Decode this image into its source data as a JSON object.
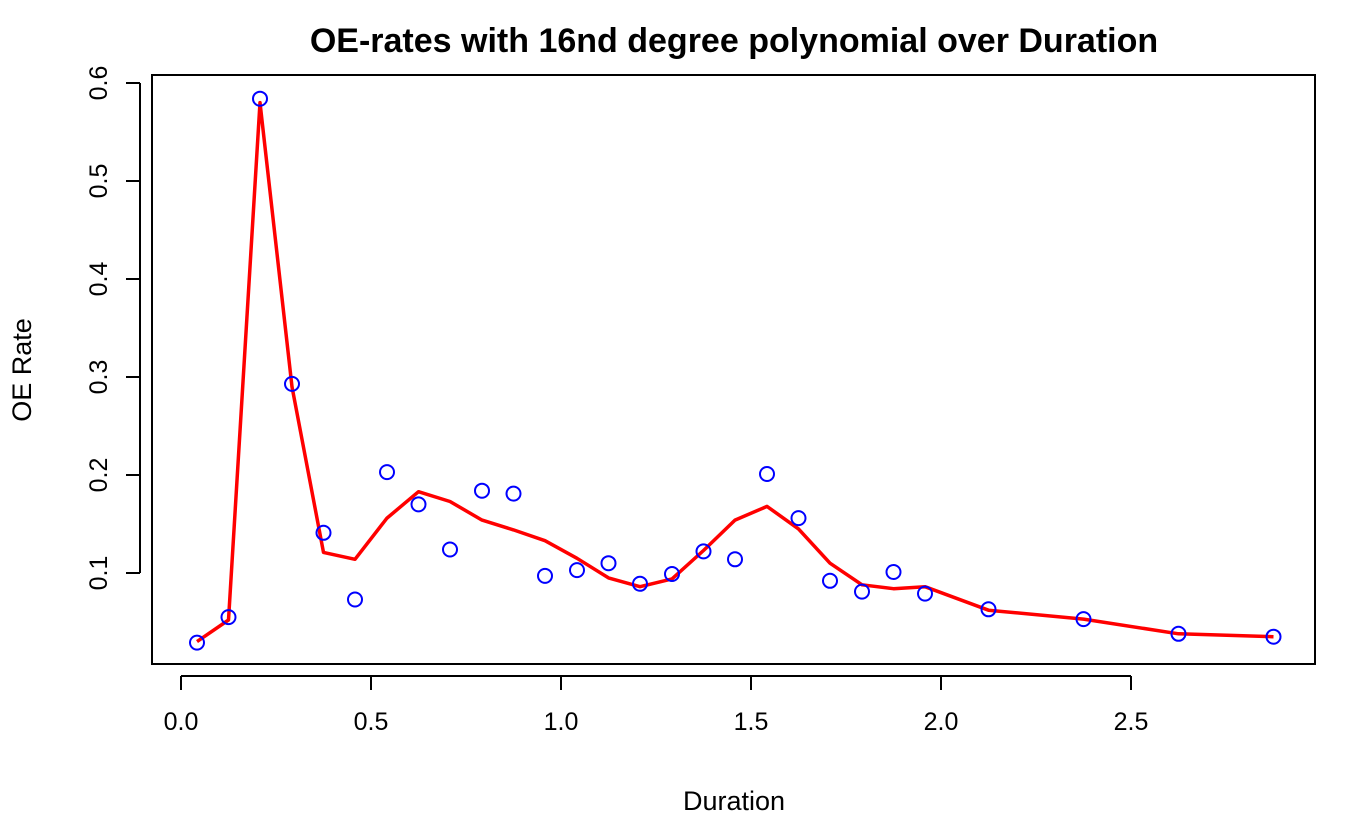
{
  "chart_data": {
    "type": "scatter",
    "title": "OE-rates with 16nd degree polynomial over Duration",
    "xlabel": "Duration",
    "ylabel": "OE Rate",
    "xlim": [
      0.0,
      2.9
    ],
    "ylim": [
      0.03,
      0.6
    ],
    "xticks": [
      "0.0",
      "0.5",
      "1.0",
      "1.5",
      "2.0",
      "2.5"
    ],
    "yticks": [
      "0.1",
      "0.2",
      "0.3",
      "0.4",
      "0.5",
      "0.6"
    ],
    "grid": false,
    "colors": {
      "points": "#0000ff",
      "fit": "#ff0000"
    },
    "series": [
      {
        "kind": "points",
        "x": [
          0.042,
          0.125,
          0.208,
          0.292,
          0.375,
          0.458,
          0.542,
          0.625,
          0.708,
          0.792,
          0.875,
          0.958,
          1.042,
          1.125,
          1.208,
          1.292,
          1.375,
          1.458,
          1.542,
          1.625,
          1.708,
          1.792,
          1.875,
          1.958,
          2.125,
          2.375,
          2.625,
          2.875
        ],
        "y": [
          0.029,
          0.055,
          0.584,
          0.293,
          0.141,
          0.073,
          0.203,
          0.17,
          0.124,
          0.184,
          0.181,
          0.097,
          0.103,
          0.11,
          0.089,
          0.099,
          0.122,
          0.114,
          0.201,
          0.156,
          0.092,
          0.081,
          0.101,
          0.079,
          0.063,
          0.053,
          0.038,
          0.035
        ]
      },
      {
        "kind": "line",
        "x": [
          0.042,
          0.125,
          0.208,
          0.292,
          0.375,
          0.458,
          0.542,
          0.625,
          0.708,
          0.792,
          0.875,
          0.958,
          1.042,
          1.125,
          1.208,
          1.292,
          1.375,
          1.458,
          1.542,
          1.625,
          1.708,
          1.792,
          1.875,
          1.958,
          2.125,
          2.375,
          2.625,
          2.875
        ],
        "y": [
          0.03,
          0.052,
          0.58,
          0.29,
          0.121,
          0.114,
          0.156,
          0.183,
          0.173,
          0.154,
          0.144,
          0.133,
          0.115,
          0.095,
          0.086,
          0.094,
          0.123,
          0.154,
          0.168,
          0.145,
          0.11,
          0.088,
          0.084,
          0.086,
          0.062,
          0.053,
          0.038,
          0.035
        ]
      }
    ]
  }
}
